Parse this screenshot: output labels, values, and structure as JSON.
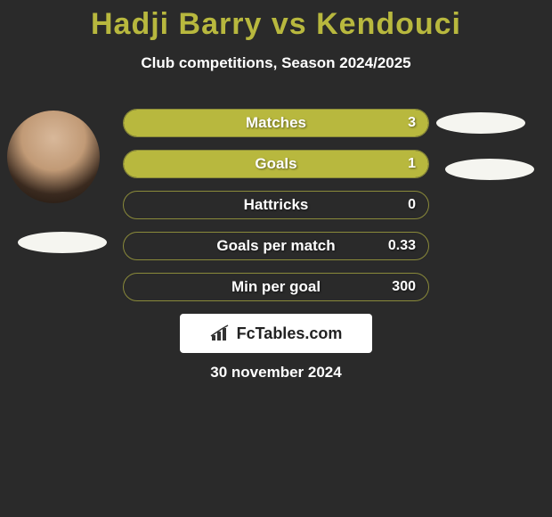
{
  "title_color": "#b8b83e",
  "title": "Hadji Barry vs Kendouci",
  "subtitle": "Club competitions, Season 2024/2025",
  "bar_color": "#b8b83e",
  "bar_border": "#8a8a3a",
  "stats": [
    {
      "label": "Matches",
      "value": "3",
      "fill_pct": 100
    },
    {
      "label": "Goals",
      "value": "1",
      "fill_pct": 100
    },
    {
      "label": "Hattricks",
      "value": "0",
      "fill_pct": 0
    },
    {
      "label": "Goals per match",
      "value": "0.33",
      "fill_pct": 0
    },
    {
      "label": "Min per goal",
      "value": "300",
      "fill_pct": 0
    }
  ],
  "logo_text": "FcTables.com",
  "date": "30 november 2024"
}
